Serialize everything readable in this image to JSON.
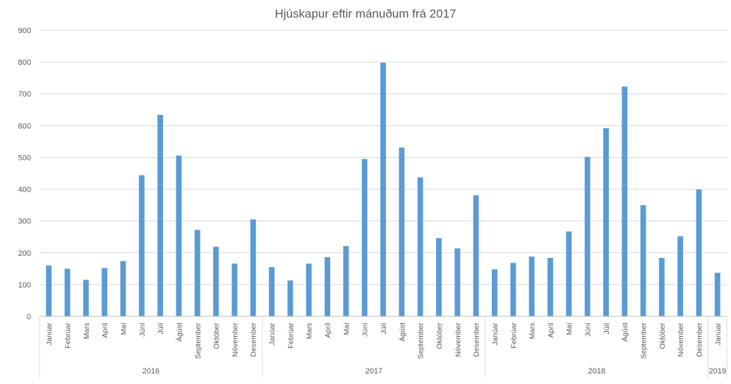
{
  "chart_data": {
    "type": "bar",
    "title": "Hjúskapur eftir mánuðum frá 2017",
    "ylim": [
      0,
      900
    ],
    "yticks": [
      0,
      100,
      200,
      300,
      400,
      500,
      600,
      700,
      800,
      900
    ],
    "grid": true,
    "legend": "none",
    "bar_color": "#5B9BD5",
    "groups": [
      {
        "year": "2016",
        "months": [
          "Janúar",
          "Febrúar",
          "Mars",
          "Apríl",
          "Maí",
          "Júní",
          "Júlí",
          "Ágúst",
          "September",
          "Október",
          "Nóvember",
          "Desember"
        ],
        "values": [
          160,
          150,
          115,
          152,
          174,
          444,
          634,
          506,
          272,
          219,
          166,
          305
        ]
      },
      {
        "year": "2017",
        "months": [
          "Janúar",
          "Febrúar",
          "Mars",
          "Apríl",
          "Maí",
          "Júní",
          "Júlí",
          "Ágúst",
          "September",
          "Október",
          "Nóvember",
          "Desember"
        ],
        "values": [
          155,
          113,
          166,
          186,
          221,
          495,
          798,
          531,
          437,
          246,
          214,
          381
        ]
      },
      {
        "year": "2018",
        "months": [
          "Janúar",
          "Febrúar",
          "Mars",
          "Apríl",
          "Maí",
          "Júní",
          "Júlí",
          "Ágúst",
          "September",
          "Október",
          "Nóvember",
          "Desember"
        ],
        "values": [
          148,
          168,
          188,
          184,
          267,
          502,
          592,
          723,
          350,
          184,
          252,
          399
        ]
      },
      {
        "year": "2019",
        "months": [
          "Janúar"
        ],
        "values": [
          137
        ]
      }
    ]
  }
}
